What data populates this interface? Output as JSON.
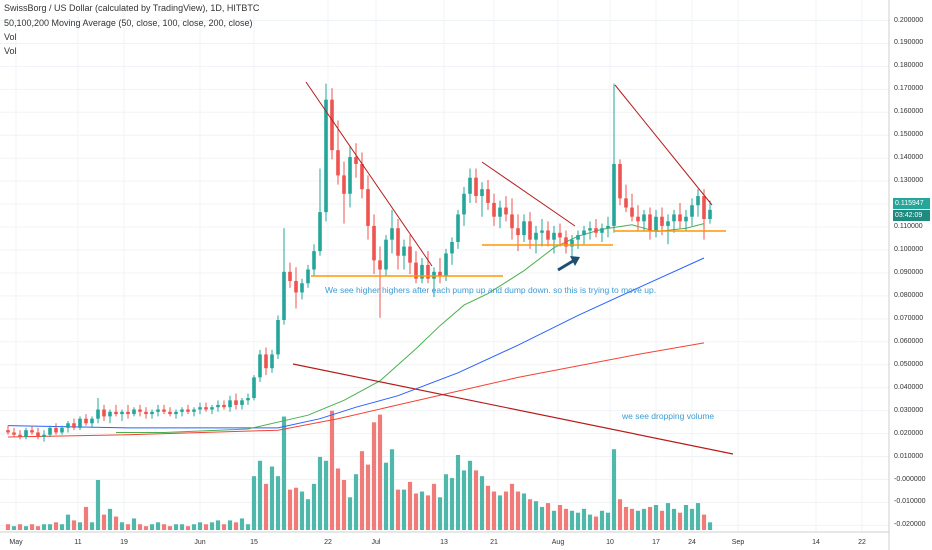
{
  "header": {
    "title": "SwissBorg / US Dollar (calculated by TradingView), 1D, HITBTC",
    "indicator": "50,100,200 Moving Average (50, close, 100, close, 200, close)",
    "vol1": "Vol",
    "vol2": "Vol"
  },
  "chart_data": {
    "type": "candlestick",
    "price_axis_labels": [
      "0.200000",
      "0.190000",
      "0.180000",
      "0.170000",
      "0.160000",
      "0.150000",
      "0.140000",
      "0.130000",
      "0.120000",
      "0.110000",
      "0.100000",
      "0.090000",
      "0.080000",
      "0.070000",
      "0.060000",
      "0.050000",
      "0.040000",
      "0.030000",
      "0.020000",
      "0.010000",
      "-0.000000",
      "-0.010000",
      "-0.020000"
    ],
    "price_range": [
      -0.02,
      0.2
    ],
    "date_axis_labels": [
      "May",
      "11",
      "19",
      "Jun",
      "15",
      "22",
      "Jul",
      "13",
      "21",
      "Aug",
      "10",
      "17",
      "24",
      "Sep",
      "14",
      "22"
    ],
    "last_price": "0.115947",
    "countdown": "03:42:09",
    "candles": [
      [
        0.0215,
        0.0235,
        0.0195,
        0.0205
      ],
      [
        0.0205,
        0.0225,
        0.0185,
        0.0195
      ],
      [
        0.0195,
        0.0215,
        0.0175,
        0.0185
      ],
      [
        0.0185,
        0.0225,
        0.0175,
        0.0215
      ],
      [
        0.0215,
        0.0235,
        0.0195,
        0.0205
      ],
      [
        0.0205,
        0.0225,
        0.0175,
        0.0185
      ],
      [
        0.0185,
        0.0215,
        0.0165,
        0.0195
      ],
      [
        0.0195,
        0.0235,
        0.0185,
        0.0225
      ],
      [
        0.0225,
        0.0245,
        0.0195,
        0.0205
      ],
      [
        0.0205,
        0.0235,
        0.0195,
        0.0225
      ],
      [
        0.0225,
        0.0255,
        0.0205,
        0.0245
      ],
      [
        0.0245,
        0.0265,
        0.0215,
        0.0225
      ],
      [
        0.0225,
        0.0275,
        0.0215,
        0.0265
      ],
      [
        0.0265,
        0.0285,
        0.0235,
        0.0245
      ],
      [
        0.0245,
        0.0275,
        0.0225,
        0.0265
      ],
      [
        0.0265,
        0.0355,
        0.0245,
        0.0305
      ],
      [
        0.0305,
        0.0325,
        0.0255,
        0.0275
      ],
      [
        0.0275,
        0.0305,
        0.0245,
        0.0295
      ],
      [
        0.0295,
        0.0325,
        0.0275,
        0.0285
      ],
      [
        0.0285,
        0.0305,
        0.0255,
        0.0295
      ],
      [
        0.0295,
        0.0325,
        0.0265,
        0.0285
      ],
      [
        0.0285,
        0.0315,
        0.0275,
        0.0305
      ],
      [
        0.0305,
        0.0325,
        0.0275,
        0.0295
      ],
      [
        0.0295,
        0.0315,
        0.0265,
        0.0285
      ],
      [
        0.0285,
        0.0305,
        0.0265,
        0.0295
      ],
      [
        0.0295,
        0.0325,
        0.0275,
        0.0305
      ],
      [
        0.0305,
        0.0325,
        0.0285,
        0.0295
      ],
      [
        0.0295,
        0.0315,
        0.0275,
        0.0285
      ],
      [
        0.0285,
        0.0305,
        0.0265,
        0.0295
      ],
      [
        0.0295,
        0.0315,
        0.0275,
        0.0305
      ],
      [
        0.0305,
        0.0325,
        0.0285,
        0.0295
      ],
      [
        0.0295,
        0.0315,
        0.0275,
        0.0305
      ],
      [
        0.0305,
        0.0335,
        0.0285,
        0.0315
      ],
      [
        0.0315,
        0.0335,
        0.0295,
        0.0305
      ],
      [
        0.0305,
        0.0325,
        0.0285,
        0.0315
      ],
      [
        0.0315,
        0.0345,
        0.0295,
        0.0325
      ],
      [
        0.0325,
        0.0345,
        0.0305,
        0.0315
      ],
      [
        0.0315,
        0.0365,
        0.0295,
        0.0345
      ],
      [
        0.0345,
        0.0375,
        0.0305,
        0.0325
      ],
      [
        0.0325,
        0.0355,
        0.0305,
        0.0345
      ],
      [
        0.0345,
        0.0375,
        0.0325,
        0.0355
      ],
      [
        0.0355,
        0.0455,
        0.0345,
        0.0445
      ],
      [
        0.0445,
        0.0565,
        0.0425,
        0.0545
      ],
      [
        0.0545,
        0.0575,
        0.0455,
        0.0485
      ],
      [
        0.0485,
        0.0565,
        0.0465,
        0.0545
      ],
      [
        0.0545,
        0.0715,
        0.0525,
        0.0695
      ],
      [
        0.0695,
        0.1095,
        0.0675,
        0.0905
      ],
      [
        0.0905,
        0.0945,
        0.0835,
        0.0865
      ],
      [
        0.0865,
        0.0925,
        0.0745,
        0.0815
      ],
      [
        0.0815,
        0.0875,
        0.0785,
        0.0855
      ],
      [
        0.0855,
        0.0935,
        0.0835,
        0.0915
      ],
      [
        0.0915,
        0.1025,
        0.0885,
        0.0995
      ],
      [
        0.0995,
        0.1355,
        0.0975,
        0.1165
      ],
      [
        0.1165,
        0.1725,
        0.1125,
        0.1655
      ],
      [
        0.1655,
        0.1705,
        0.1395,
        0.1435
      ],
      [
        0.1435,
        0.1565,
        0.1285,
        0.1325
      ],
      [
        0.1325,
        0.1385,
        0.1115,
        0.1245
      ],
      [
        0.1245,
        0.1455,
        0.1185,
        0.1405
      ],
      [
        0.1405,
        0.1465,
        0.1315,
        0.1375
      ],
      [
        0.1375,
        0.1425,
        0.1225,
        0.1265
      ],
      [
        0.1265,
        0.1325,
        0.1045,
        0.1105
      ],
      [
        0.1105,
        0.1155,
        0.0895,
        0.0955
      ],
      [
        0.0955,
        0.1015,
        0.0705,
        0.0915
      ],
      [
        0.0915,
        0.1065,
        0.0885,
        0.1045
      ],
      [
        0.1045,
        0.1175,
        0.0985,
        0.1095
      ],
      [
        0.1095,
        0.1135,
        0.0915,
        0.0975
      ],
      [
        0.0975,
        0.1045,
        0.0915,
        0.1015
      ],
      [
        0.1015,
        0.1065,
        0.0895,
        0.0945
      ],
      [
        0.0945,
        0.0995,
        0.0855,
        0.0875
      ],
      [
        0.0875,
        0.0965,
        0.0855,
        0.0935
      ],
      [
        0.0935,
        0.0995,
        0.0855,
        0.0875
      ],
      [
        0.0875,
        0.0925,
        0.0795,
        0.0905
      ],
      [
        0.0905,
        0.0965,
        0.0855,
        0.0885
      ],
      [
        0.0885,
        0.1005,
        0.0865,
        0.0985
      ],
      [
        0.0985,
        0.1055,
        0.0935,
        0.1035
      ],
      [
        0.1035,
        0.1175,
        0.1005,
        0.1155
      ],
      [
        0.1155,
        0.1275,
        0.1105,
        0.1245
      ],
      [
        0.1245,
        0.1355,
        0.1205,
        0.1315
      ],
      [
        0.1315,
        0.1355,
        0.1205,
        0.1235
      ],
      [
        0.1235,
        0.1295,
        0.1145,
        0.1265
      ],
      [
        0.1265,
        0.1305,
        0.1175,
        0.1205
      ],
      [
        0.1205,
        0.1245,
        0.1105,
        0.1145
      ],
      [
        0.1145,
        0.1215,
        0.1095,
        0.1185
      ],
      [
        0.1185,
        0.1235,
        0.1125,
        0.1155
      ],
      [
        0.1155,
        0.1225,
        0.1045,
        0.1095
      ],
      [
        0.1095,
        0.1155,
        0.0995,
        0.1065
      ],
      [
        0.1065,
        0.1155,
        0.1035,
        0.1125
      ],
      [
        0.1125,
        0.1165,
        0.1005,
        0.1045
      ],
      [
        0.1045,
        0.1105,
        0.0985,
        0.1075
      ],
      [
        0.1075,
        0.1135,
        0.1015,
        0.1085
      ],
      [
        0.1085,
        0.1125,
        0.1015,
        0.1045
      ],
      [
        0.1045,
        0.1105,
        0.0985,
        0.1075
      ],
      [
        0.1075,
        0.1115,
        0.1015,
        0.1055
      ],
      [
        0.1055,
        0.1085,
        0.0985,
        0.1015
      ],
      [
        0.1015,
        0.1065,
        0.0965,
        0.1045
      ],
      [
        0.1045,
        0.1085,
        0.1005,
        0.1065
      ],
      [
        0.1065,
        0.1105,
        0.1025,
        0.1085
      ],
      [
        0.1085,
        0.1125,
        0.1045,
        0.1095
      ],
      [
        0.1095,
        0.1135,
        0.1055,
        0.1075
      ],
      [
        0.1075,
        0.1115,
        0.1035,
        0.1095
      ],
      [
        0.1095,
        0.1145,
        0.1055,
        0.1105
      ],
      [
        0.1105,
        0.1725,
        0.1075,
        0.1375
      ],
      [
        0.1375,
        0.1395,
        0.1195,
        0.1225
      ],
      [
        0.1225,
        0.1285,
        0.1165,
        0.1185
      ],
      [
        0.1185,
        0.1245,
        0.1125,
        0.1145
      ],
      [
        0.1145,
        0.1195,
        0.1085,
        0.1125
      ],
      [
        0.1125,
        0.1175,
        0.1085,
        0.1155
      ],
      [
        0.1155,
        0.1185,
        0.1045,
        0.1085
      ],
      [
        0.1085,
        0.1175,
        0.1055,
        0.1145
      ],
      [
        0.1145,
        0.1185,
        0.1065,
        0.1105
      ],
      [
        0.1105,
        0.1155,
        0.1025,
        0.1125
      ],
      [
        0.1125,
        0.1175,
        0.1075,
        0.1155
      ],
      [
        0.1155,
        0.1205,
        0.1095,
        0.1125
      ],
      [
        0.1125,
        0.1175,
        0.1085,
        0.1145
      ],
      [
        0.1145,
        0.1225,
        0.1105,
        0.1195
      ],
      [
        0.1195,
        0.1265,
        0.1145,
        0.1235
      ],
      [
        0.1235,
        0.1265,
        0.1045,
        0.1135
      ],
      [
        0.1135,
        0.1215,
        0.1115,
        0.1175
      ]
    ],
    "ma50": [
      [
        18,
        0.0205
      ],
      [
        26,
        0.0205
      ],
      [
        40,
        0.022
      ],
      [
        50,
        0.028
      ],
      [
        56,
        0.0345
      ],
      [
        62,
        0.043
      ],
      [
        68,
        0.057
      ],
      [
        72,
        0.067
      ],
      [
        76,
        0.076
      ],
      [
        80,
        0.081
      ],
      [
        86,
        0.091
      ],
      [
        91,
        0.101
      ],
      [
        95,
        0.106
      ],
      [
        99,
        0.109
      ],
      [
        104,
        0.111
      ],
      [
        108,
        0.108
      ],
      [
        113,
        0.1095
      ],
      [
        116,
        0.1115
      ]
    ],
    "ma100": [
      [
        0,
        0.0235
      ],
      [
        20,
        0.0225
      ],
      [
        45,
        0.0225
      ],
      [
        52,
        0.0265
      ],
      [
        58,
        0.0315
      ],
      [
        65,
        0.0365
      ],
      [
        75,
        0.0465
      ],
      [
        85,
        0.0585
      ],
      [
        95,
        0.0715
      ],
      [
        105,
        0.0835
      ],
      [
        116,
        0.0965
      ]
    ],
    "ma200": [
      [
        0,
        0.0185
      ],
      [
        20,
        0.0195
      ],
      [
        45,
        0.0215
      ],
      [
        55,
        0.0265
      ],
      [
        65,
        0.0325
      ],
      [
        75,
        0.0385
      ],
      [
        85,
        0.0445
      ],
      [
        95,
        0.0495
      ],
      [
        105,
        0.0545
      ],
      [
        116,
        0.0595
      ]
    ],
    "volume": [
      {
        "v": 0.003,
        "up": false
      },
      {
        "v": 0.002,
        "up": true
      },
      {
        "v": 0.003,
        "up": false
      },
      {
        "v": 0.002,
        "up": true
      },
      {
        "v": 0.003,
        "up": false
      },
      {
        "v": 0.002,
        "up": false
      },
      {
        "v": 0.003,
        "up": true
      },
      {
        "v": 0.003,
        "up": true
      },
      {
        "v": 0.004,
        "up": false
      },
      {
        "v": 0.003,
        "up": true
      },
      {
        "v": 0.008,
        "up": true
      },
      {
        "v": 0.005,
        "up": false
      },
      {
        "v": 0.004,
        "up": true
      },
      {
        "v": 0.012,
        "up": false
      },
      {
        "v": 0.004,
        "up": true
      },
      {
        "v": 0.026,
        "up": true
      },
      {
        "v": 0.008,
        "up": false
      },
      {
        "v": 0.011,
        "up": true
      },
      {
        "v": 0.007,
        "up": false
      },
      {
        "v": 0.004,
        "up": true
      },
      {
        "v": 0.003,
        "up": false
      },
      {
        "v": 0.006,
        "up": true
      },
      {
        "v": 0.003,
        "up": false
      },
      {
        "v": 0.002,
        "up": false
      },
      {
        "v": 0.003,
        "up": true
      },
      {
        "v": 0.004,
        "up": true
      },
      {
        "v": 0.003,
        "up": false
      },
      {
        "v": 0.002,
        "up": false
      },
      {
        "v": 0.003,
        "up": true
      },
      {
        "v": 0.003,
        "up": true
      },
      {
        "v": 0.002,
        "up": false
      },
      {
        "v": 0.003,
        "up": true
      },
      {
        "v": 0.004,
        "up": true
      },
      {
        "v": 0.003,
        "up": false
      },
      {
        "v": 0.004,
        "up": true
      },
      {
        "v": 0.005,
        "up": true
      },
      {
        "v": 0.003,
        "up": false
      },
      {
        "v": 0.005,
        "up": true
      },
      {
        "v": 0.004,
        "up": false
      },
      {
        "v": 0.006,
        "up": true
      },
      {
        "v": 0.003,
        "up": true
      },
      {
        "v": 0.028,
        "up": true
      },
      {
        "v": 0.036,
        "up": true
      },
      {
        "v": 0.024,
        "up": false
      },
      {
        "v": 0.033,
        "up": true
      },
      {
        "v": 0.028,
        "up": true
      },
      {
        "v": 0.059,
        "up": true
      },
      {
        "v": 0.021,
        "up": false
      },
      {
        "v": 0.022,
        "up": false
      },
      {
        "v": 0.02,
        "up": true
      },
      {
        "v": 0.016,
        "up": true
      },
      {
        "v": 0.024,
        "up": true
      },
      {
        "v": 0.038,
        "up": true
      },
      {
        "v": 0.036,
        "up": true
      },
      {
        "v": 0.062,
        "up": false
      },
      {
        "v": 0.032,
        "up": false
      },
      {
        "v": 0.026,
        "up": false
      },
      {
        "v": 0.017,
        "up": true
      },
      {
        "v": 0.029,
        "up": true
      },
      {
        "v": 0.041,
        "up": false
      },
      {
        "v": 0.034,
        "up": false
      },
      {
        "v": 0.056,
        "up": false
      },
      {
        "v": 0.06,
        "up": false
      },
      {
        "v": 0.035,
        "up": true
      },
      {
        "v": 0.042,
        "up": true
      },
      {
        "v": 0.021,
        "up": false
      },
      {
        "v": 0.021,
        "up": true
      },
      {
        "v": 0.025,
        "up": false
      },
      {
        "v": 0.019,
        "up": false
      },
      {
        "v": 0.02,
        "up": true
      },
      {
        "v": 0.018,
        "up": false
      },
      {
        "v": 0.024,
        "up": false
      },
      {
        "v": 0.017,
        "up": true
      },
      {
        "v": 0.029,
        "up": true
      },
      {
        "v": 0.027,
        "up": true
      },
      {
        "v": 0.039,
        "up": true
      },
      {
        "v": 0.031,
        "up": true
      },
      {
        "v": 0.036,
        "up": true
      },
      {
        "v": 0.031,
        "up": false
      },
      {
        "v": 0.028,
        "up": true
      },
      {
        "v": 0.023,
        "up": false
      },
      {
        "v": 0.02,
        "up": false
      },
      {
        "v": 0.018,
        "up": true
      },
      {
        "v": 0.02,
        "up": false
      },
      {
        "v": 0.024,
        "up": false
      },
      {
        "v": 0.02,
        "up": false
      },
      {
        "v": 0.019,
        "up": true
      },
      {
        "v": 0.016,
        "up": false
      },
      {
        "v": 0.015,
        "up": true
      },
      {
        "v": 0.012,
        "up": true
      },
      {
        "v": 0.014,
        "up": false
      },
      {
        "v": 0.01,
        "up": true
      },
      {
        "v": 0.013,
        "up": false
      },
      {
        "v": 0.011,
        "up": false
      },
      {
        "v": 0.01,
        "up": true
      },
      {
        "v": 0.009,
        "up": true
      },
      {
        "v": 0.011,
        "up": true
      },
      {
        "v": 0.008,
        "up": true
      },
      {
        "v": 0.007,
        "up": false
      },
      {
        "v": 0.01,
        "up": true
      },
      {
        "v": 0.009,
        "up": true
      },
      {
        "v": 0.042,
        "up": true
      },
      {
        "v": 0.016,
        "up": false
      },
      {
        "v": 0.012,
        "up": false
      },
      {
        "v": 0.011,
        "up": false
      },
      {
        "v": 0.01,
        "up": true
      },
      {
        "v": 0.011,
        "up": true
      },
      {
        "v": 0.012,
        "up": false
      },
      {
        "v": 0.013,
        "up": true
      },
      {
        "v": 0.01,
        "up": false
      },
      {
        "v": 0.014,
        "up": true
      },
      {
        "v": 0.011,
        "up": true
      },
      {
        "v": 0.009,
        "up": false
      },
      {
        "v": 0.013,
        "up": true
      },
      {
        "v": 0.011,
        "up": true
      },
      {
        "v": 0.014,
        "up": true
      },
      {
        "v": 0.008,
        "up": false
      },
      {
        "v": 0.004,
        "up": true
      }
    ],
    "volume_scale_max": 0.065,
    "annotations": {
      "upper": "We see higher highers after each pump up and dump down. so this is trying to move up.",
      "lower": "we see dropping volume"
    }
  },
  "colors": {
    "up": "#26a69a",
    "down": "#ef5350",
    "vol_up": "#4fb8ab",
    "vol_down": "#f07c79",
    "ma50": "#4caf50",
    "ma100": "#2962ff",
    "ma200": "#f44336",
    "trend_red": "#b71c1c",
    "support": "#ff9800",
    "arrow": "#1e4f73"
  }
}
